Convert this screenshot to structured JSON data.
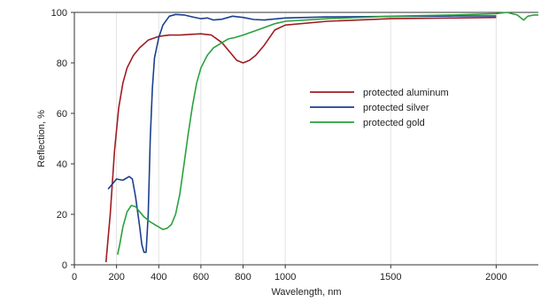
{
  "chart_data": {
    "type": "line",
    "xlabel": "Wavelength, nm",
    "ylabel": "Reflection, %",
    "xlim": [
      0,
      2200
    ],
    "ylim": [
      0,
      100
    ],
    "x_ticks": [
      0,
      200,
      400,
      600,
      800,
      1000,
      1500,
      2000
    ],
    "y_ticks": [
      0,
      20,
      40,
      60,
      80,
      100
    ],
    "grid": "vertical",
    "legend_position": "center-right",
    "series": [
      {
        "name": "protected aluminum",
        "color": "#a01c22",
        "points": [
          [
            150,
            1
          ],
          [
            170,
            20
          ],
          [
            190,
            45
          ],
          [
            210,
            62
          ],
          [
            230,
            72
          ],
          [
            250,
            78
          ],
          [
            280,
            83
          ],
          [
            310,
            86
          ],
          [
            350,
            89
          ],
          [
            400,
            90.5
          ],
          [
            450,
            91
          ],
          [
            500,
            91
          ],
          [
            550,
            91.3
          ],
          [
            600,
            91.5
          ],
          [
            650,
            91
          ],
          [
            700,
            88
          ],
          [
            740,
            84
          ],
          [
            770,
            81
          ],
          [
            800,
            80
          ],
          [
            830,
            81
          ],
          [
            860,
            83
          ],
          [
            900,
            87
          ],
          [
            950,
            93
          ],
          [
            1000,
            95
          ],
          [
            1200,
            96.5
          ],
          [
            1500,
            97.5
          ],
          [
            1800,
            97.8
          ],
          [
            2000,
            98
          ]
        ]
      },
      {
        "name": "protected silver",
        "color": "#1c3f8f",
        "points": [
          [
            160,
            30
          ],
          [
            180,
            32
          ],
          [
            200,
            34
          ],
          [
            230,
            33.5
          ],
          [
            260,
            35
          ],
          [
            275,
            34
          ],
          [
            290,
            27
          ],
          [
            310,
            15
          ],
          [
            320,
            8
          ],
          [
            330,
            5
          ],
          [
            340,
            5
          ],
          [
            350,
            20
          ],
          [
            360,
            50
          ],
          [
            370,
            70
          ],
          [
            380,
            82
          ],
          [
            400,
            90
          ],
          [
            420,
            95
          ],
          [
            450,
            98.5
          ],
          [
            480,
            99.2
          ],
          [
            520,
            99
          ],
          [
            560,
            98.2
          ],
          [
            600,
            97.5
          ],
          [
            630,
            97.8
          ],
          [
            660,
            97
          ],
          [
            700,
            97.3
          ],
          [
            750,
            98.5
          ],
          [
            800,
            98
          ],
          [
            850,
            97.2
          ],
          [
            900,
            97
          ],
          [
            1000,
            97.8
          ],
          [
            1200,
            98.2
          ],
          [
            1500,
            98.4
          ],
          [
            1800,
            98.6
          ],
          [
            2000,
            98.6
          ]
        ]
      },
      {
        "name": "protected gold",
        "color": "#2aa13e",
        "points": [
          [
            205,
            4
          ],
          [
            215,
            8
          ],
          [
            230,
            15
          ],
          [
            250,
            21
          ],
          [
            270,
            23.5
          ],
          [
            290,
            23
          ],
          [
            310,
            21
          ],
          [
            330,
            19
          ],
          [
            360,
            17
          ],
          [
            400,
            15
          ],
          [
            420,
            14
          ],
          [
            440,
            14.5
          ],
          [
            460,
            16
          ],
          [
            480,
            20
          ],
          [
            500,
            28
          ],
          [
            520,
            40
          ],
          [
            540,
            52
          ],
          [
            560,
            63
          ],
          [
            580,
            72
          ],
          [
            600,
            78
          ],
          [
            630,
            83
          ],
          [
            660,
            86
          ],
          [
            700,
            88
          ],
          [
            730,
            89.5
          ],
          [
            760,
            90
          ],
          [
            800,
            91
          ],
          [
            850,
            92.5
          ],
          [
            900,
            94
          ],
          [
            950,
            95.5
          ],
          [
            1000,
            96.5
          ],
          [
            1200,
            97.5
          ],
          [
            1500,
            98.5
          ],
          [
            1800,
            99
          ],
          [
            2000,
            99.5
          ],
          [
            2050,
            100
          ],
          [
            2100,
            99
          ],
          [
            2130,
            97
          ],
          [
            2150,
            98.5
          ],
          [
            2180,
            99
          ],
          [
            2200,
            99
          ]
        ]
      }
    ]
  }
}
